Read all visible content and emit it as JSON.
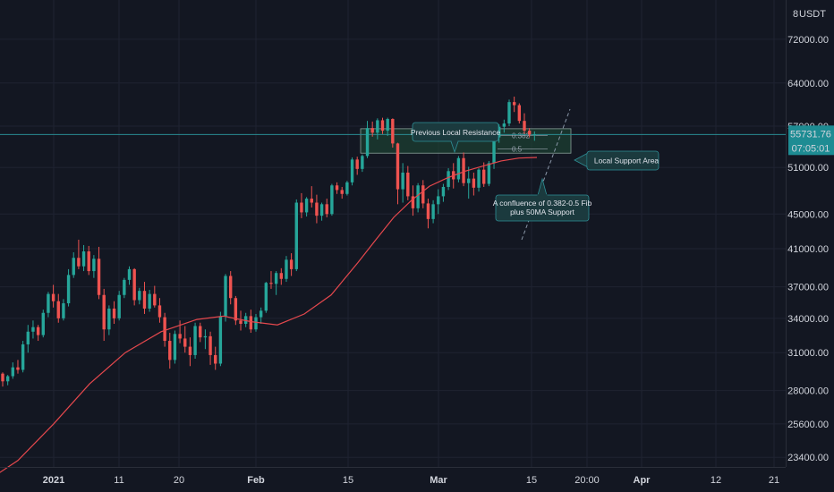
{
  "chart_data": {
    "type": "candlestick",
    "currency": "USDT",
    "scale": "log",
    "y_ticks": [
      "72000.00",
      "64000.00",
      "57000.00",
      "51000.00",
      "45000.00",
      "41000.00",
      "37000.00",
      "34000.00",
      "31000.00",
      "28000.00",
      "25600.00",
      "23400.00"
    ],
    "x_ticks": [
      "2021",
      "11",
      "20",
      "Feb",
      "15",
      "Mar",
      "15",
      "20:00",
      "Apr",
      "12",
      "21"
    ],
    "x_ticks_bold": [
      "2021",
      "Feb",
      "Mar",
      "Apr"
    ],
    "last_price": "55731.76",
    "countdown": "07:05:01",
    "y_axis_top_label": "8",
    "ylim": [
      22800,
      80000
    ],
    "annotations": {
      "previous_local_resistance": "Previous Local Resistance",
      "local_support_area": "Local Support Area",
      "confluence": [
        "A confluence of 0.382-0.5 Fib",
        "plus  50MA Support"
      ],
      "fib_0382": "0.382",
      "fib_05": "0.5"
    },
    "ma50": [
      [
        -2,
        22400
      ],
      [
        20,
        23200
      ],
      [
        60,
        25600
      ],
      [
        100,
        28500
      ],
      [
        140,
        31000
      ],
      [
        180,
        32800
      ],
      [
        220,
        33900
      ],
      [
        250,
        34200
      ],
      [
        280,
        33700
      ],
      [
        310,
        33400
      ],
      [
        340,
        34400
      ],
      [
        370,
        36200
      ],
      [
        400,
        39500
      ],
      [
        420,
        42000
      ],
      [
        440,
        44600
      ],
      [
        460,
        46700
      ],
      [
        480,
        48500
      ],
      [
        500,
        49600
      ],
      [
        520,
        50500
      ],
      [
        540,
        51200
      ],
      [
        560,
        51900
      ],
      [
        580,
        52300
      ],
      [
        600,
        52400
      ]
    ],
    "candles": [
      [
        29300,
        29400,
        28300,
        28700
      ],
      [
        28700,
        29200,
        28400,
        29100
      ],
      [
        29100,
        30200,
        28900,
        29800
      ],
      [
        29800,
        30400,
        29300,
        29600
      ],
      [
        29600,
        32000,
        29400,
        31700
      ],
      [
        31700,
        33400,
        31000,
        32800
      ],
      [
        32800,
        33800,
        32200,
        33200
      ],
      [
        33200,
        33400,
        32000,
        32500
      ],
      [
        32500,
        34800,
        32300,
        34500
      ],
      [
        34500,
        36500,
        34100,
        36300
      ],
      [
        36300,
        37200,
        35000,
        35600
      ],
      [
        35600,
        36300,
        33600,
        34000
      ],
      [
        34000,
        35800,
        33800,
        35400
      ],
      [
        35400,
        38800,
        35100,
        38200
      ],
      [
        38200,
        40600,
        37900,
        40000
      ],
      [
        40000,
        42000,
        38800,
        39100
      ],
      [
        39100,
        41400,
        38600,
        40700
      ],
      [
        40700,
        41300,
        38200,
        38600
      ],
      [
        38600,
        40300,
        37900,
        39900
      ],
      [
        39900,
        41200,
        35800,
        36200
      ],
      [
        36200,
        36800,
        32000,
        33000
      ],
      [
        33000,
        35200,
        32500,
        34900
      ],
      [
        34900,
        35600,
        33500,
        34000
      ],
      [
        34000,
        36600,
        33800,
        36200
      ],
      [
        36200,
        37900,
        35900,
        37700
      ],
      [
        37700,
        39100,
        37200,
        38800
      ],
      [
        38800,
        38900,
        35200,
        35700
      ],
      [
        35700,
        36900,
        35300,
        36600
      ],
      [
        36600,
        37500,
        34400,
        34900
      ],
      [
        34900,
        36700,
        34600,
        36300
      ],
      [
        36300,
        37100,
        35000,
        35200
      ],
      [
        35200,
        35900,
        33600,
        34100
      ],
      [
        34100,
        34500,
        31500,
        32000
      ],
      [
        32000,
        32700,
        29700,
        30400
      ],
      [
        30400,
        32900,
        30100,
        32600
      ],
      [
        32600,
        33800,
        31800,
        32200
      ],
      [
        32200,
        33300,
        31000,
        31500
      ],
      [
        31500,
        32300,
        29900,
        30800
      ],
      [
        30800,
        33600,
        30500,
        33300
      ],
      [
        33300,
        33600,
        31900,
        32300
      ],
      [
        32300,
        33000,
        31300,
        32400
      ],
      [
        32400,
        32800,
        30000,
        30800
      ],
      [
        30800,
        31500,
        29600,
        30100
      ],
      [
        30100,
        34600,
        29900,
        34200
      ],
      [
        34200,
        38300,
        33700,
        38100
      ],
      [
        38100,
        38600,
        35300,
        35900
      ],
      [
        35900,
        36100,
        33400,
        33800
      ],
      [
        33800,
        34700,
        32900,
        33500
      ],
      [
        33500,
        34500,
        33200,
        34200
      ],
      [
        34200,
        34800,
        32700,
        33000
      ],
      [
        33000,
        34400,
        32800,
        34100
      ],
      [
        34100,
        35000,
        33500,
        34700
      ],
      [
        34700,
        37500,
        34500,
        37400
      ],
      [
        37400,
        38600,
        36800,
        37300
      ],
      [
        37300,
        38600,
        36200,
        38400
      ],
      [
        38400,
        38900,
        37200,
        37800
      ],
      [
        37800,
        40200,
        37500,
        39800
      ],
      [
        39800,
        40500,
        38100,
        38800
      ],
      [
        38800,
        46800,
        38600,
        46400
      ],
      [
        46400,
        47600,
        44500,
        45200
      ],
      [
        45200,
        47100,
        44700,
        46900
      ],
      [
        46900,
        48500,
        45800,
        46400
      ],
      [
        46400,
        47400,
        43900,
        44800
      ],
      [
        44800,
        46400,
        44200,
        46200
      ],
      [
        46200,
        46900,
        44600,
        45000
      ],
      [
        45000,
        48800,
        44800,
        48600
      ],
      [
        48600,
        49000,
        47500,
        48000
      ],
      [
        48000,
        48400,
        46900,
        47500
      ],
      [
        47500,
        49200,
        47300,
        49000
      ],
      [
        49000,
        52400,
        48600,
        52100
      ],
      [
        52100,
        52500,
        50000,
        50800
      ],
      [
        50800,
        52800,
        50400,
        52600
      ],
      [
        52600,
        57800,
        52300,
        56700
      ],
      [
        56700,
        57700,
        55400,
        56000
      ],
      [
        56000,
        58200,
        55000,
        57900
      ],
      [
        57900,
        58300,
        55800,
        56300
      ],
      [
        56300,
        58300,
        55500,
        58100
      ],
      [
        58100,
        58200,
        53800,
        54400
      ],
      [
        54400,
        54500,
        46200,
        48100
      ],
      [
        48100,
        51600,
        46400,
        50300
      ],
      [
        50300,
        51200,
        46700,
        47200
      ],
      [
        47200,
        48600,
        44800,
        45700
      ],
      [
        45700,
        48900,
        45200,
        48600
      ],
      [
        48600,
        49300,
        45700,
        46300
      ],
      [
        46300,
        46900,
        43300,
        44400
      ],
      [
        44400,
        46700,
        43900,
        46200
      ],
      [
        46200,
        48100,
        45000,
        47200
      ],
      [
        47200,
        48800,
        46500,
        48400
      ],
      [
        48400,
        50900,
        48000,
        50500
      ],
      [
        50500,
        51600,
        48200,
        49400
      ],
      [
        49400,
        52600,
        49000,
        52300
      ],
      [
        52300,
        53100,
        48500,
        48900
      ],
      [
        48900,
        51100,
        46900,
        49500
      ],
      [
        49500,
        50300,
        47300,
        48300
      ],
      [
        48300,
        50900,
        47800,
        50700
      ],
      [
        50700,
        51700,
        48400,
        48800
      ],
      [
        48800,
        51900,
        48500,
        51600
      ],
      [
        51600,
        55600,
        50800,
        55300
      ],
      [
        55300,
        57300,
        54500,
        56900
      ],
      [
        56900,
        58000,
        56000,
        57400
      ],
      [
        57400,
        61200,
        57000,
        60800
      ],
      [
        60800,
        61700,
        59200,
        60300
      ],
      [
        60300,
        60600,
        57400,
        57800
      ],
      [
        57800,
        59000,
        55800,
        56300
      ],
      [
        56300,
        56700,
        55300,
        55700
      ],
      [
        55700,
        56200,
        54800,
        55730
      ]
    ]
  }
}
